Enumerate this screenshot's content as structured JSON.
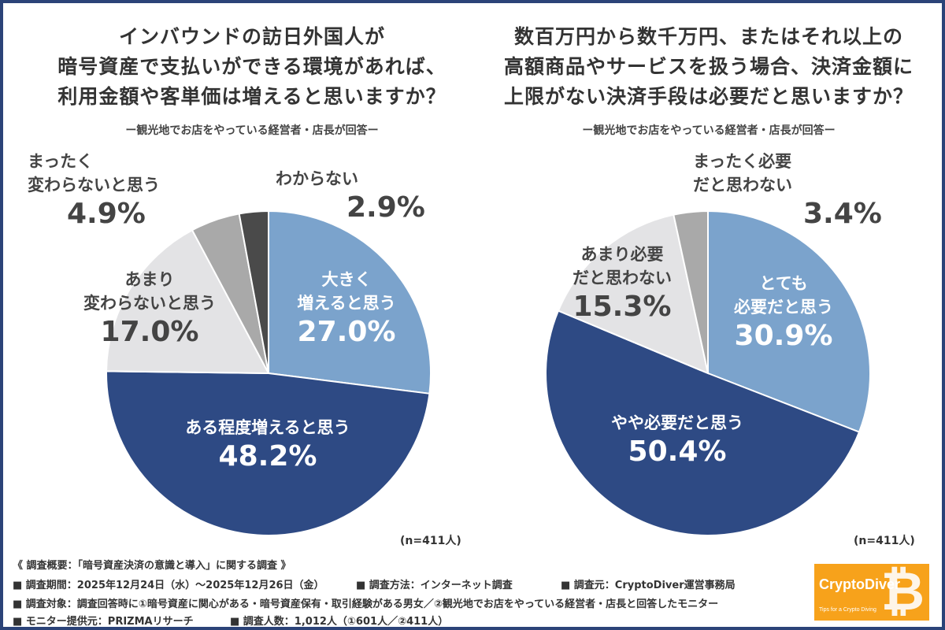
{
  "chart_data": [
    {
      "type": "pie",
      "title": "インバウンドの訪日外国人が\n暗号資産で支払いができる環境があれば、\n利用金額や客単価は増えると思いますか？",
      "subtitle": "ー観光地でお店をやっている経営者・店長が回答ー",
      "note": "(n=411人)",
      "slices": [
        {
          "label": "大きく\n増えると思う",
          "value": 27.0,
          "pct": "27.0%",
          "color": "#7ba3cc"
        },
        {
          "label": "ある程度増えると思う",
          "value": 48.2,
          "pct": "48.2%",
          "color": "#2e4a84"
        },
        {
          "label": "あまり\n変わらないと思う",
          "value": 17.0,
          "pct": "17.0%",
          "color": "#e3e3e5"
        },
        {
          "label": "まったく\n変わらないと思う",
          "value": 4.9,
          "pct": "4.9%",
          "color": "#a9a9a9"
        },
        {
          "label": "わからない",
          "value": 2.9,
          "pct": "2.9%",
          "color": "#4a4a4a"
        }
      ]
    },
    {
      "type": "pie",
      "title": "数百万円から数千万円、またはそれ以上の\n高額商品やサービスを扱う場合、決済金額に\n上限がない決済手段は必要だと思いますか？",
      "subtitle": "ー観光地でお店をやっている経営者・店長が回答ー",
      "note": "(n=411人)",
      "slices": [
        {
          "label": "とても\n必要だと思う",
          "value": 30.9,
          "pct": "30.9%",
          "color": "#7ba3cc"
        },
        {
          "label": "やや必要だと思う",
          "value": 50.4,
          "pct": "50.4%",
          "color": "#2e4a84"
        },
        {
          "label": "あまり必要\nだと思わない",
          "value": 15.3,
          "pct": "15.3%",
          "color": "#e3e3e5"
        },
        {
          "label": "まったく必要\nだと思わない",
          "value": 3.4,
          "pct": "3.4%",
          "color": "#a9a9a9"
        }
      ]
    }
  ],
  "footer": {
    "line1": "《 調査概要：「暗号資産決済の意識と導入」に関する調査 》",
    "period": "■ 調査期間：2025年12月24日（水）〜2025年12月26日（金）",
    "method": "■ 調査方法：インターネット調査",
    "source": "■ 調査元：CryptoDiver運営事務局",
    "target": "■ 調査対象：調査回答時に①暗号資産に関心がある・暗号資産保有・取引経験がある男女／②観光地でお店をやっている経営者・店長と回答したモニター",
    "provider": "■ モニター提供元：PRIZMAリサーチ",
    "count": "■ 調査人数：1,012人（①601人／②411人）"
  },
  "logo": {
    "name": "CryptoDiver",
    "tagline": "Tips for a Crypto Diving"
  }
}
